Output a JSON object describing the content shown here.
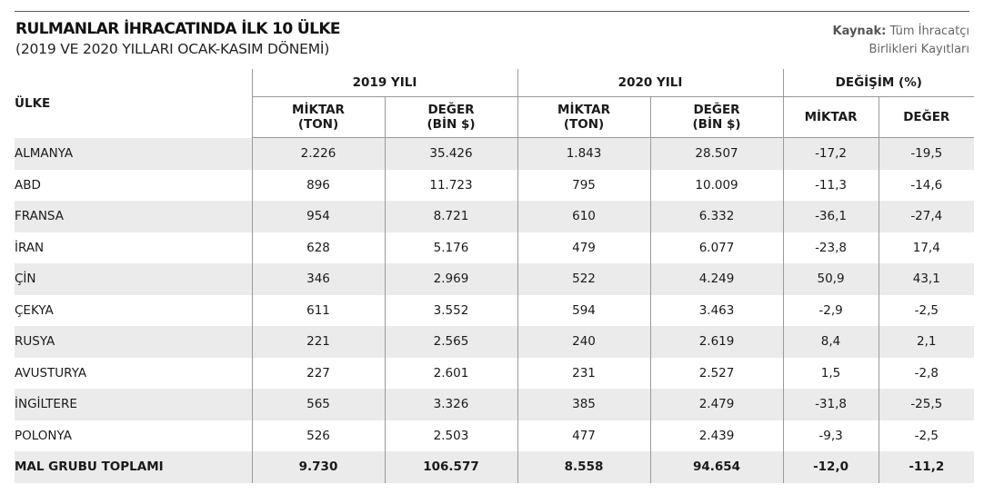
{
  "header": {
    "title": "RULMANLAR İHRACATINDA İLK 10 ÜLKE",
    "subtitle": "(2019 VE 2020 YILLARI OCAK-KASIM DÖNEMİ)",
    "source_label": "Kaynak:",
    "source_line1": "Tüm İhracatçı",
    "source_line2": "Birlikleri Kayıtları"
  },
  "table": {
    "country_header": "ÜLKE",
    "groups": [
      "2019 YILI",
      "2020 YILI",
      "DEĞİŞİM (%)"
    ],
    "sub_headers": {
      "y2019_qty_line1": "MİKTAR",
      "y2019_qty_line2": "(TON)",
      "y2019_val_line1": "DEĞER",
      "y2019_val_line2": "(BİN $)",
      "y2020_qty_line1": "MİKTAR",
      "y2020_qty_line2": "(TON)",
      "y2020_val_line1": "DEĞER",
      "y2020_val_line2": "(BİN $)",
      "chg_qty": "MİKTAR",
      "chg_val": "DEĞER"
    },
    "rows": [
      {
        "country": "ALMANYA",
        "q2019": "2.226",
        "v2019": "35.426",
        "q2020": "1.843",
        "v2020": "28.507",
        "cq": "-17,2",
        "cv": "-19,5"
      },
      {
        "country": "ABD",
        "q2019": "896",
        "v2019": "11.723",
        "q2020": "795",
        "v2020": "10.009",
        "cq": "-11,3",
        "cv": "-14,6"
      },
      {
        "country": "FRANSA",
        "q2019": "954",
        "v2019": "8.721",
        "q2020": "610",
        "v2020": "6.332",
        "cq": "-36,1",
        "cv": "-27,4"
      },
      {
        "country": "İRAN",
        "q2019": "628",
        "v2019": "5.176",
        "q2020": "479",
        "v2020": "6.077",
        "cq": "-23,8",
        "cv": "17,4"
      },
      {
        "country": "ÇİN",
        "q2019": "346",
        "v2019": "2.969",
        "q2020": "522",
        "v2020": "4.249",
        "cq": "50,9",
        "cv": "43,1"
      },
      {
        "country": "ÇEKYA",
        "q2019": "611",
        "v2019": "3.552",
        "q2020": "594",
        "v2020": "3.463",
        "cq": "-2,9",
        "cv": "-2,5"
      },
      {
        "country": "RUSYA",
        "q2019": "221",
        "v2019": "2.565",
        "q2020": "240",
        "v2020": "2.619",
        "cq": "8,4",
        "cv": "2,1"
      },
      {
        "country": "AVUSTURYA",
        "q2019": "227",
        "v2019": "2.601",
        "q2020": "231",
        "v2020": "2.527",
        "cq": "1,5",
        "cv": "-2,8"
      },
      {
        "country": "İNGİLTERE",
        "q2019": "565",
        "v2019": "3.326",
        "q2020": "385",
        "v2020": "2.479",
        "cq": "-31,8",
        "cv": "-25,5"
      },
      {
        "country": "POLONYA",
        "q2019": "526",
        "v2019": "2.503",
        "q2020": "477",
        "v2020": "2.439",
        "cq": "-9,3",
        "cv": "-2,5"
      }
    ],
    "total": {
      "country": "MAL GRUBU TOPLAMI",
      "q2019": "9.730",
      "v2019": "106.577",
      "q2020": "8.558",
      "v2020": "94.654",
      "cq": "-12,0",
      "cv": "-11,2"
    }
  }
}
